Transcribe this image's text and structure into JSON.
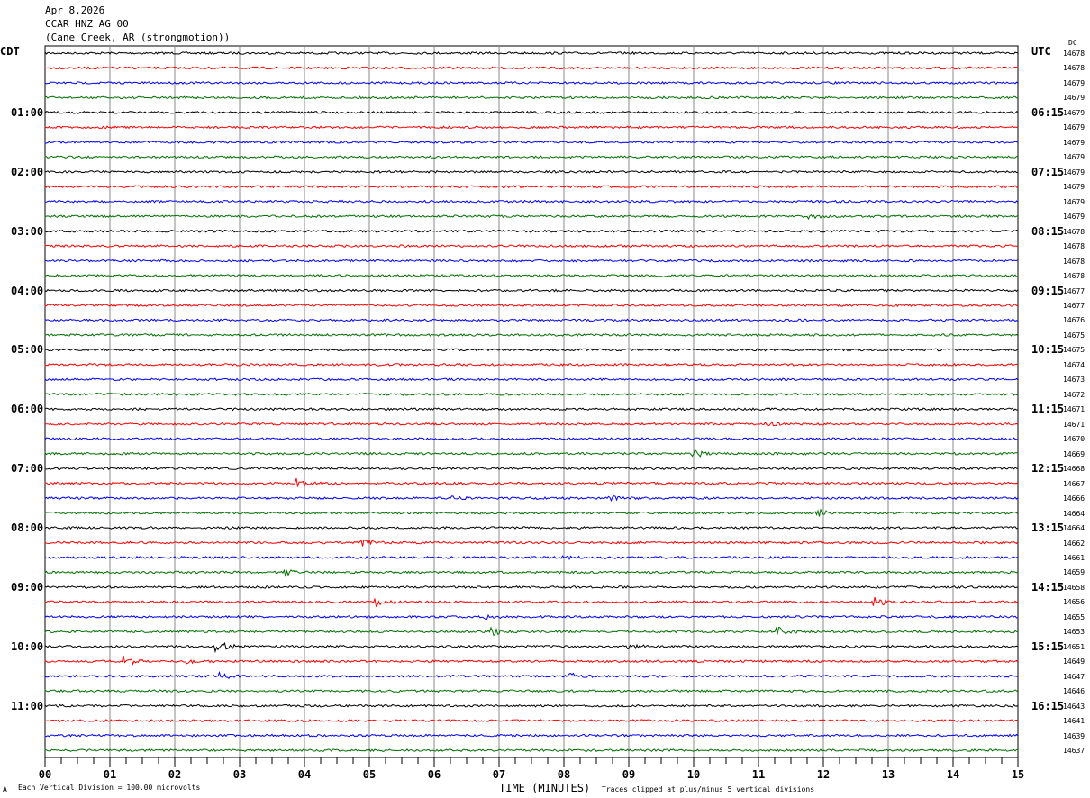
{
  "header": {
    "date": "Apr 8,2026",
    "channel": "CCAR HNZ AG 00",
    "location": "(Cane Creek, AR (strongmotion))"
  },
  "left_timezone": "CDT",
  "right_timezone": "UTC",
  "dc_header": "DC",
  "footer": {
    "scale_note": "Each Vertical Division =  100.00 microvolts",
    "xlabel": "TIME (MINUTES)",
    "clip_note": "Traces clipped at plus/minus 5 vertical divisions",
    "corner_mark": "A"
  },
  "chart_data": {
    "type": "line",
    "title": "CCAR HNZ AG 00",
    "xlabel": "TIME (MINUTES)",
    "xlim": [
      0,
      15
    ],
    "x_ticks": [
      "00",
      "01",
      "02",
      "03",
      "04",
      "05",
      "06",
      "07",
      "08",
      "09",
      "10",
      "11",
      "12",
      "13",
      "14",
      "15"
    ],
    "trace_colors": [
      "#000000",
      "#ff0000",
      "#0000ff",
      "#007000"
    ],
    "grid": true,
    "traces_per_hour": 4,
    "left_hour_labels": [
      "01:00",
      "02:00",
      "03:00",
      "04:00",
      "05:00",
      "06:00",
      "07:00",
      "08:00",
      "09:00",
      "10:00",
      "11:00"
    ],
    "right_hour_labels": [
      "06:15",
      "07:15",
      "08:15",
      "09:15",
      "10:15",
      "11:15",
      "12:15",
      "13:15",
      "14:15",
      "15:15",
      "16:15"
    ],
    "dc_values": [
      14678,
      14678,
      14679,
      14679,
      14679,
      14679,
      14679,
      14679,
      14679,
      14679,
      14679,
      14679,
      14678,
      14678,
      14678,
      14678,
      14677,
      14677,
      14676,
      14675,
      14675,
      14674,
      14673,
      14672,
      14671,
      14671,
      14670,
      14669,
      14668,
      14667,
      14666,
      14664,
      14664,
      14662,
      14661,
      14659,
      14658,
      14656,
      14655,
      14653,
      14651,
      14649,
      14647,
      14646,
      14643,
      14641,
      14639,
      14637
    ],
    "events": [
      {
        "trace": 11,
        "minute": 11.8,
        "amplitude": 3
      },
      {
        "trace": 25,
        "minute": 11.1,
        "amplitude": 3
      },
      {
        "trace": 27,
        "minute": 10.0,
        "amplitude": 5
      },
      {
        "trace": 29,
        "minute": 3.9,
        "amplitude": 5
      },
      {
        "trace": 29,
        "minute": 8.6,
        "amplitude": 2
      },
      {
        "trace": 30,
        "minute": 8.7,
        "amplitude": 3
      },
      {
        "trace": 30,
        "minute": 6.3,
        "amplitude": 2
      },
      {
        "trace": 31,
        "minute": 11.9,
        "amplitude": 5
      },
      {
        "trace": 33,
        "minute": 4.9,
        "amplitude": 4
      },
      {
        "trace": 34,
        "minute": 8.0,
        "amplitude": 2
      },
      {
        "trace": 35,
        "minute": 3.7,
        "amplitude": 5
      },
      {
        "trace": 37,
        "minute": 5.1,
        "amplitude": 5
      },
      {
        "trace": 37,
        "minute": 12.8,
        "amplitude": 5
      },
      {
        "trace": 38,
        "minute": 6.8,
        "amplitude": 2
      },
      {
        "trace": 39,
        "minute": 6.9,
        "amplitude": 5
      },
      {
        "trace": 39,
        "minute": 11.3,
        "amplitude": 5
      },
      {
        "trace": 40,
        "minute": 2.6,
        "amplitude": 12
      },
      {
        "trace": 40,
        "minute": 9.0,
        "amplitude": 3
      },
      {
        "trace": 41,
        "minute": 1.2,
        "amplitude": 6
      },
      {
        "trace": 41,
        "minute": 2.2,
        "amplitude": 2
      },
      {
        "trace": 42,
        "minute": 2.7,
        "amplitude": 4
      },
      {
        "trace": 42,
        "minute": 8.1,
        "amplitude": 3
      }
    ]
  }
}
